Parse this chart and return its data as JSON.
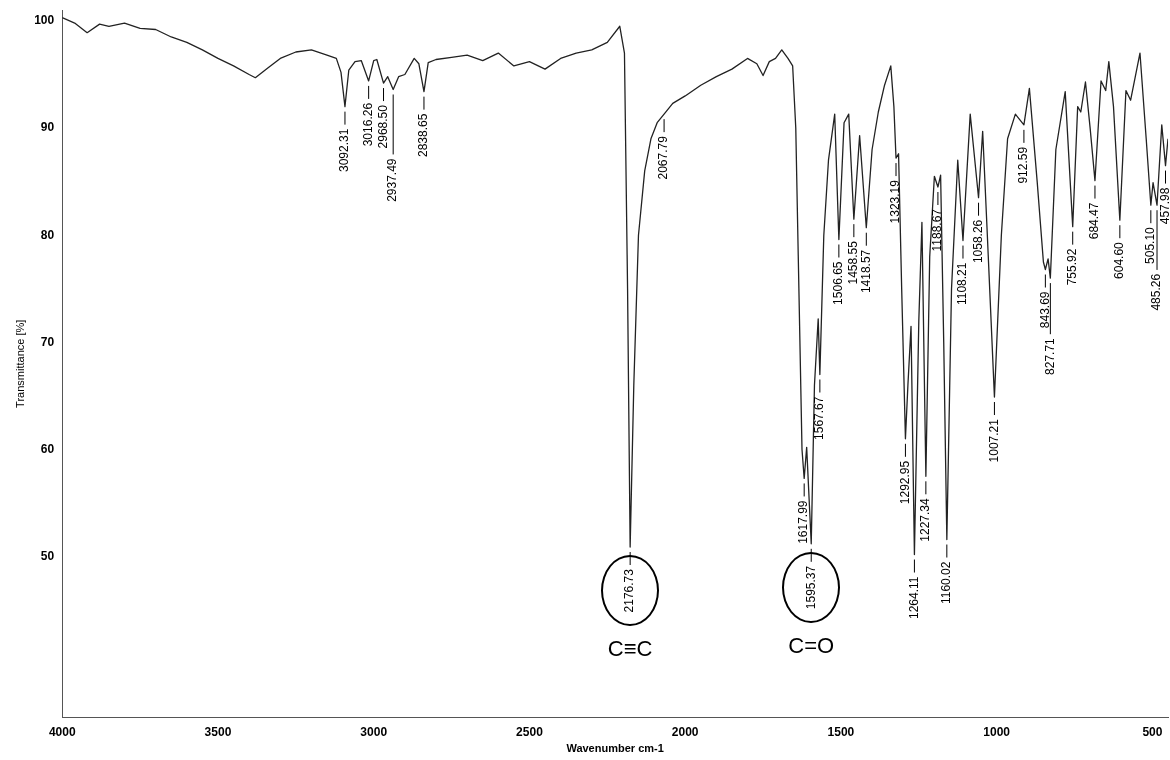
{
  "chart_data": {
    "type": "line",
    "xlabel": "Wavenumber cm-1",
    "ylabel": "Transmittance [%]",
    "color": "#222222",
    "xlim": [
      4000,
      450
    ],
    "xticks": [
      4000,
      3500,
      3000,
      2500,
      2000,
      1500,
      1000,
      500
    ],
    "ylim": [
      35,
      101
    ],
    "yticks": [
      50,
      60,
      70,
      80,
      90,
      100
    ],
    "grid": false,
    "legend": false,
    "marker": "none",
    "line_style": "solid",
    "x": [
      4000,
      3960,
      3920,
      3880,
      3850,
      3800,
      3750,
      3700,
      3650,
      3600,
      3550,
      3500,
      3450,
      3400,
      3380,
      3340,
      3300,
      3250,
      3200,
      3150,
      3120,
      3105,
      3092.31,
      3080,
      3060,
      3040,
      3016.26,
      3000,
      2990,
      2968.5,
      2955,
      2937.49,
      2920,
      2900,
      2870,
      2855,
      2838.65,
      2825,
      2800,
      2750,
      2700,
      2650,
      2600,
      2550,
      2500,
      2450,
      2400,
      2350,
      2300,
      2250,
      2210,
      2195,
      2185,
      2176.73,
      2165,
      2150,
      2130,
      2110,
      2090,
      2067.79,
      2040,
      2000,
      1950,
      1900,
      1850,
      1800,
      1770,
      1750,
      1730,
      1710,
      1690,
      1670,
      1655,
      1645,
      1635,
      1625,
      1617.99,
      1610,
      1595.37,
      1585,
      1573,
      1567.67,
      1555,
      1540,
      1520,
      1506.65,
      1490,
      1475,
      1458.55,
      1440,
      1418.57,
      1400,
      1380,
      1360,
      1340,
      1330,
      1323.19,
      1315,
      1305,
      1292.95,
      1285,
      1275,
      1264.11,
      1250,
      1240,
      1227.34,
      1215,
      1200,
      1188.67,
      1180,
      1170,
      1160.02,
      1145,
      1125,
      1108.21,
      1085,
      1058.26,
      1045,
      1030,
      1007.21,
      985,
      965,
      940,
      912.59,
      895,
      870,
      850,
      843.69,
      835,
      827.71,
      810,
      780,
      755.92,
      740,
      730,
      715,
      700,
      684.47,
      665,
      650,
      640,
      625,
      604.6,
      585,
      570,
      540,
      520,
      505.1,
      498,
      485.26,
      470,
      457.98,
      450
    ],
    "values": [
      100.3,
      99.8,
      98.9,
      99.7,
      99.5,
      99.8,
      99.3,
      99.2,
      98.5,
      98,
      97.3,
      96.5,
      95.8,
      95,
      94.7,
      95.6,
      96.5,
      97.1,
      97.3,
      96.8,
      96.5,
      95.2,
      92,
      95.4,
      96.2,
      96.3,
      94.4,
      96.3,
      96.4,
      94.2,
      94.8,
      93.6,
      94.8,
      95,
      96.5,
      96,
      93.4,
      96.1,
      96.4,
      96.6,
      96.8,
      96.3,
      97,
      95.8,
      96.2,
      95.5,
      96.5,
      97,
      97.3,
      98,
      99.5,
      97,
      75,
      50.9,
      66,
      80,
      86,
      89,
      90.5,
      91.3,
      92.3,
      93,
      94,
      94.8,
      95.5,
      96.5,
      96,
      94.9,
      96.2,
      96.5,
      97.3,
      96.5,
      95.8,
      90,
      75,
      60,
      57.3,
      60.2,
      51.2,
      66,
      72.2,
      67,
      80,
      87,
      91.3,
      79.6,
      90.5,
      91.3,
      81.5,
      89.3,
      80.7,
      88,
      91.5,
      94,
      95.8,
      92,
      87.2,
      87.6,
      75,
      61,
      66,
      71.5,
      50.2,
      72,
      81.2,
      57.5,
      78,
      85.5,
      84.5,
      85.6,
      70,
      51.6,
      75,
      87,
      79.5,
      91.3,
      83.5,
      89.7,
      80,
      64.9,
      80,
      89,
      91.3,
      90.3,
      93.7,
      85,
      77.5,
      76.8,
      77.8,
      76,
      88,
      93.4,
      80.8,
      92,
      91.5,
      94.3,
      90,
      85.1,
      94.4,
      93.5,
      96.2,
      92,
      81.4,
      93.5,
      92.6,
      97,
      89,
      82.8,
      84.9,
      82.8,
      90.3,
      86.5,
      89
    ],
    "annotations": [
      {
        "text": "3092.31",
        "x": 3092.31,
        "y": 92
      },
      {
        "text": "3016.26",
        "x": 3016.26,
        "y": 94.4
      },
      {
        "text": "2968.50",
        "x": 2968.5,
        "y": 94.2
      },
      {
        "text": "2937.49",
        "x": 2937.49,
        "y": 93.6
      },
      {
        "text": "2838.65",
        "x": 2838.65,
        "y": 93.4
      },
      {
        "text": "2176.73",
        "x": 2176.73,
        "y": 50.9
      },
      "C≡C",
      {
        "text": "2067.79",
        "x": 2067.79,
        "y": 91.3
      },
      {
        "text": "1617.99",
        "x": 1617.99,
        "y": 57.3
      },
      {
        "text": "1595.37",
        "x": 1595.37,
        "y": 51.2
      },
      "C=O",
      {
        "text": "1567.67",
        "x": 1567.67,
        "y": 67
      },
      {
        "text": "1506.65",
        "x": 1506.65,
        "y": 79.6
      },
      {
        "text": "1458.55",
        "x": 1458.55,
        "y": 81.5
      },
      {
        "text": "1418.57",
        "x": 1418.57,
        "y": 80.7
      },
      {
        "text": "1323.19",
        "x": 1323.19,
        "y": 87.2
      },
      {
        "text": "1292.95",
        "x": 1292.95,
        "y": 61
      },
      {
        "text": "1264.11",
        "x": 1264.11,
        "y": 50.2
      },
      {
        "text": "1227.34",
        "x": 1227.34,
        "y": 57.5
      },
      {
        "text": "1188.67",
        "x": 1188.67,
        "y": 84.5
      },
      {
        "text": "1160.02",
        "x": 1160.02,
        "y": 51.6
      },
      {
        "text": "1108.21",
        "x": 1108.21,
        "y": 79.5
      },
      {
        "text": "1058.26",
        "x": 1058.26,
        "y": 83.5
      },
      {
        "text": "1007.21",
        "x": 1007.21,
        "y": 64.9
      },
      {
        "text": "912.59",
        "x": 912.59,
        "y": 90.3
      },
      {
        "text": "843.69",
        "x": 843.69,
        "y": 76.8
      },
      {
        "text": "827.71",
        "x": 827.71,
        "y": 76
      },
      {
        "text": "755.92",
        "x": 755.92,
        "y": 80.8
      },
      {
        "text": "684.47",
        "x": 684.47,
        "y": 85.1
      },
      {
        "text": "604.60",
        "x": 604.6,
        "y": 81.4
      },
      {
        "text": "505.10",
        "x": 505.1,
        "y": 82.8
      },
      {
        "text": "485.26",
        "x": 485.26,
        "y": 82.8
      },
      {
        "text": "457.98",
        "x": 457.98,
        "y": 86.5
      }
    ]
  }
}
